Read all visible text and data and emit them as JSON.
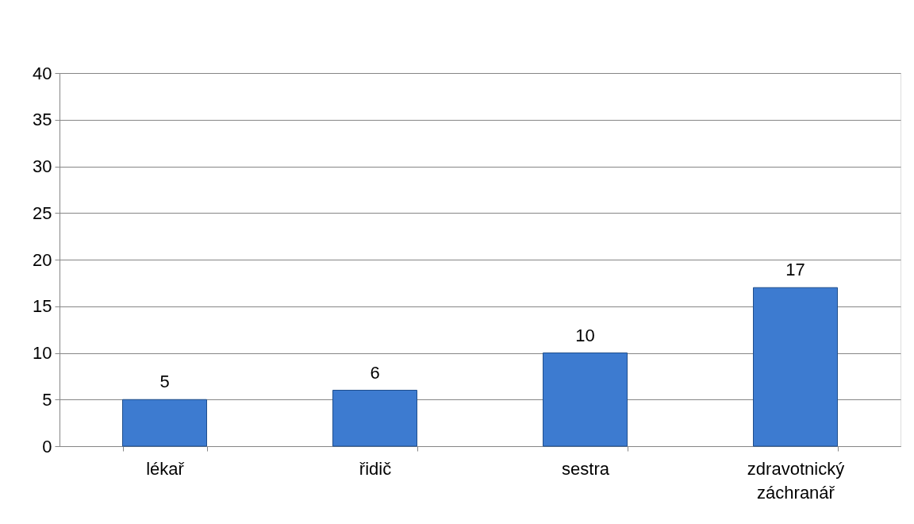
{
  "chart_data": {
    "type": "bar",
    "categories": [
      "lékař",
      "řidič",
      "sestra",
      "zdravotnický záchranář"
    ],
    "values": [
      5,
      6,
      10,
      17
    ],
    "color": "#3d7bd0",
    "ylim": [
      0,
      40
    ],
    "yticks": [
      0,
      5,
      10,
      15,
      20,
      25,
      30,
      35,
      40
    ],
    "grid": "y",
    "data_labels": true
  }
}
